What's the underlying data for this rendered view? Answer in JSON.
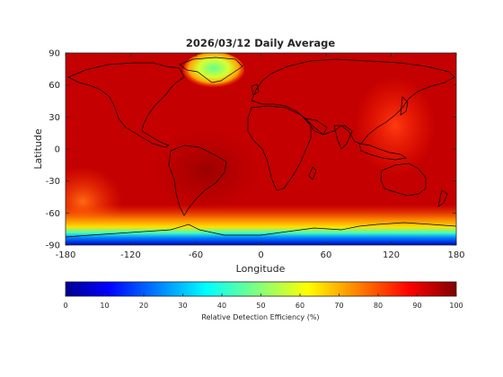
{
  "title": "2026/03/12 Daily Average",
  "map": {
    "xlabel": "Longitude",
    "ylabel": "Latitude",
    "xlim": [
      -180,
      180
    ],
    "ylim": [
      -90,
      90
    ],
    "xticks": [
      -180,
      -120,
      -60,
      0,
      60,
      120,
      180
    ],
    "yticks": [
      90,
      60,
      30,
      0,
      -30,
      -60,
      -90
    ],
    "ocean_color": "#c40000",
    "coastline_color": "#000000"
  },
  "colorbar": {
    "label": "Relative Detection Efficiency (%)",
    "range": [
      0,
      100
    ],
    "ticks": [
      0,
      10,
      20,
      30,
      40,
      50,
      60,
      70,
      80,
      90,
      100
    ],
    "colormap": "jet",
    "colors": [
      "#00008f",
      "#0000ff",
      "#0080ff",
      "#00ffff",
      "#80ff80",
      "#ffff00",
      "#ff8000",
      "#ff0000",
      "#800000"
    ]
  }
}
